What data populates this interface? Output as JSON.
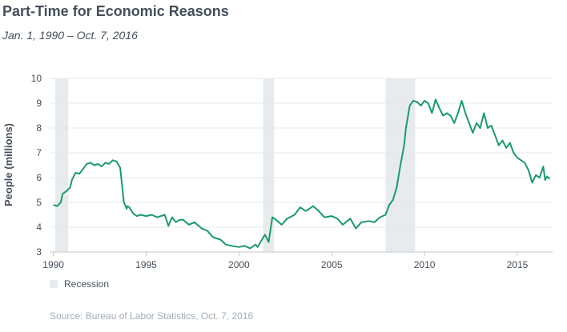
{
  "header": {
    "title": "Part-Time for Economic Reasons",
    "subtitle": "Jan. 1, 1990 – Oct. 7, 2016"
  },
  "legend": {
    "recession_label": "Recession"
  },
  "footer": {
    "source": "Source: Bureau of Labor Statistics, Oct. 7, 2016"
  },
  "colors": {
    "line": "#1a9a6c",
    "recession": "#e8ebee",
    "grid": "#e6e9ec",
    "text": "#454f5b"
  },
  "chart_data": {
    "type": "line",
    "title": "Part-Time for Economic Reasons",
    "subtitle": "Jan. 1, 1990 – Oct. 7, 2016",
    "xlabel": "",
    "ylabel": "People (millions)",
    "xlim": [
      1989.8,
      2016.9
    ],
    "ylim": [
      3,
      10
    ],
    "x_ticks": [
      1990,
      1995,
      2000,
      2005,
      2010,
      2015
    ],
    "y_ticks": [
      3,
      4,
      5,
      6,
      7,
      8,
      9,
      10
    ],
    "grid": "horizontal",
    "legend_position": "bottom-left",
    "recessions": [
      [
        1990.1,
        1990.8
      ],
      [
        2001.3,
        2001.9
      ],
      [
        2007.9,
        2009.5
      ]
    ],
    "series": [
      {
        "x": [
          1990.0,
          1990.2,
          1990.4,
          1990.5,
          1990.7,
          1990.9,
          1991.0,
          1991.2,
          1991.4,
          1991.6,
          1991.8,
          1992.0,
          1992.2,
          1992.4,
          1992.6,
          1992.8,
          1993.0,
          1993.2,
          1993.4,
          1993.6,
          1993.8,
          1993.95,
          1994.0,
          1994.1,
          1994.3,
          1994.5,
          1994.7,
          1995.0,
          1995.3,
          1995.6,
          1996.0,
          1996.2,
          1996.4,
          1996.6,
          1996.8,
          1997.0,
          1997.3,
          1997.6,
          1998.0,
          1998.3,
          1998.6,
          1999.0,
          1999.3,
          1999.6,
          2000.0,
          2000.3,
          2000.6,
          2000.9,
          2001.0,
          2001.2,
          2001.4,
          2001.6,
          2001.8,
          2002.0,
          2002.3,
          2002.6,
          2003.0,
          2003.3,
          2003.6,
          2004.0,
          2004.3,
          2004.6,
          2005.0,
          2005.3,
          2005.6,
          2006.0,
          2006.3,
          2006.6,
          2007.0,
          2007.3,
          2007.6,
          2007.9,
          2008.1,
          2008.3,
          2008.5,
          2008.7,
          2008.9,
          2009.0,
          2009.2,
          2009.4,
          2009.6,
          2009.8,
          2010.0,
          2010.2,
          2010.4,
          2010.6,
          2010.8,
          2011.0,
          2011.2,
          2011.4,
          2011.6,
          2011.8,
          2012.0,
          2012.2,
          2012.4,
          2012.6,
          2012.8,
          2013.0,
          2013.2,
          2013.4,
          2013.6,
          2013.8,
          2014.0,
          2014.2,
          2014.4,
          2014.6,
          2014.8,
          2015.0,
          2015.2,
          2015.4,
          2015.6,
          2015.8,
          2016.0,
          2016.2,
          2016.4,
          2016.5,
          2016.6,
          2016.75
        ],
        "values": [
          4.9,
          4.85,
          5.0,
          5.35,
          5.45,
          5.6,
          5.9,
          6.2,
          6.15,
          6.35,
          6.55,
          6.6,
          6.5,
          6.55,
          6.45,
          6.6,
          6.55,
          6.7,
          6.65,
          6.4,
          5.0,
          4.75,
          4.85,
          4.8,
          4.55,
          4.45,
          4.5,
          4.45,
          4.5,
          4.4,
          4.5,
          4.05,
          4.4,
          4.2,
          4.3,
          4.3,
          4.1,
          4.2,
          3.95,
          3.85,
          3.6,
          3.5,
          3.3,
          3.25,
          3.2,
          3.25,
          3.15,
          3.3,
          3.2,
          3.45,
          3.7,
          3.4,
          4.4,
          4.3,
          4.1,
          4.35,
          4.5,
          4.8,
          4.65,
          4.85,
          4.65,
          4.4,
          4.45,
          4.35,
          4.1,
          4.35,
          3.95,
          4.2,
          4.25,
          4.2,
          4.4,
          4.5,
          4.9,
          5.1,
          5.6,
          6.5,
          7.3,
          8.0,
          8.9,
          9.1,
          9.05,
          8.9,
          9.1,
          9.0,
          8.6,
          9.15,
          8.8,
          8.5,
          8.6,
          8.5,
          8.2,
          8.6,
          9.1,
          8.6,
          8.2,
          7.8,
          8.2,
          8.0,
          8.6,
          8.0,
          8.1,
          7.7,
          7.3,
          7.5,
          7.2,
          7.4,
          7.0,
          6.8,
          6.7,
          6.6,
          6.3,
          5.8,
          6.1,
          6.0,
          6.45,
          5.9,
          6.05,
          5.95
        ]
      }
    ]
  }
}
